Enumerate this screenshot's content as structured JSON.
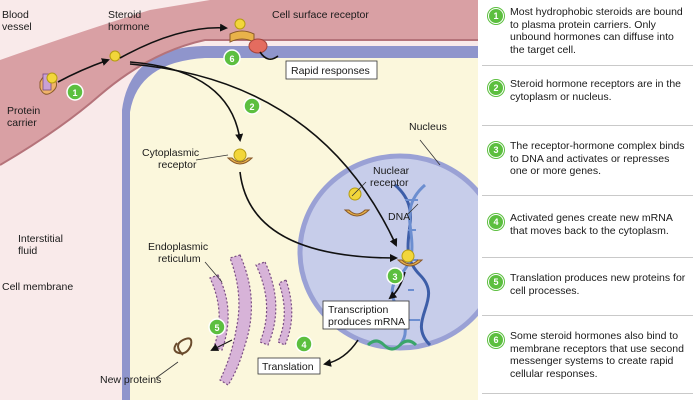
{
  "diagram": {
    "labels": {
      "blood_vessel": [
        "Blood",
        "vessel"
      ],
      "steroid_hormone": [
        "Steroid",
        "hormone"
      ],
      "protein_carrier": [
        "Protein",
        "carrier"
      ],
      "cell_surface_receptor": "Cell surface receptor",
      "rapid_responses": "Rapid responses",
      "nucleus": "Nucleus",
      "cytoplasmic_receptor": [
        "Cytoplasmic",
        "receptor"
      ],
      "nuclear_receptor": [
        "Nuclear",
        "receptor"
      ],
      "dna": "DNA",
      "interstitial_fluid": [
        "Interstitial",
        "fluid"
      ],
      "cell_membrane": "Cell membrane",
      "endoplasmic_reticulum": [
        "Endoplasmic",
        "reticulum"
      ],
      "transcription": [
        "Transcription",
        "produces mRNA"
      ],
      "translation": "Translation",
      "new_proteins": "New proteins"
    },
    "markers": [
      "1",
      "2",
      "3",
      "4",
      "5",
      "6"
    ]
  },
  "steps": [
    {
      "num": "1",
      "text": "Most hydrophobic steroids are bound to plasma protein carriers. Only unbound hormones can diffuse into the target cell."
    },
    {
      "num": "2",
      "text": "Steroid hormone receptors are in the cytoplasm or nucleus."
    },
    {
      "num": "3",
      "text": "The receptor-hormone complex binds to DNA and activates or represses one or more genes."
    },
    {
      "num": "4",
      "text": "Activated genes create new mRNA that moves back to the cytoplasm."
    },
    {
      "num": "5",
      "text": "Translation produces new proteins for cell processes."
    },
    {
      "num": "6",
      "text": "Some steroid hormones also bind to membrane receptors that use second messenger systems to create rapid cellular responses."
    }
  ],
  "colors": {
    "blood_vessel": "#d9a0a4",
    "interstitial": "#f9eaea",
    "cytoplasm": "#fbf7dc",
    "membrane": "#8f95cc",
    "nucleus": "#c7cdea",
    "hormone": "#f2d63a",
    "receptor": "#e8b24a",
    "marker": "#5cbf3f",
    "er": "#d7b3d8"
  }
}
